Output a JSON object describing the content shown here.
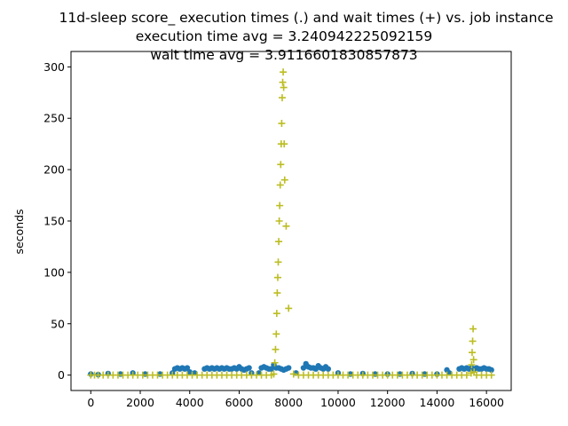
{
  "title": {
    "line1": "11d-sleep score_ execution times (.) and wait times (+) vs. job instance",
    "line2": "execution time avg = 3.240942225092159",
    "line3": "wait time avg = 3.9116601830857873"
  },
  "colors": {
    "execution": "#1f77b4",
    "wait": "#bcbd22",
    "axis": "#000000",
    "background": "#ffffff"
  },
  "chart_data": {
    "type": "scatter",
    "ylabel": "seconds",
    "xlabel": "",
    "xlim": [
      -800,
      17000
    ],
    "ylim": [
      -15,
      315
    ],
    "xticks": [
      0,
      2000,
      4000,
      6000,
      8000,
      10000,
      12000,
      14000,
      16000
    ],
    "yticks": [
      0,
      50,
      100,
      150,
      200,
      250,
      300
    ],
    "grid": false,
    "series": [
      {
        "marker": "dot",
        "color": "#1f77b4",
        "x": [
          0,
          300,
          700,
          1200,
          1700,
          2200,
          2800,
          3300,
          3400,
          3500,
          3600,
          3700,
          3800,
          3900,
          4000,
          4200,
          4600,
          4700,
          4800,
          4900,
          5000,
          5100,
          5200,
          5300,
          5400,
          5500,
          5600,
          5700,
          5800,
          5900,
          6000,
          6100,
          6200,
          6300,
          6400,
          6500,
          6800,
          6900,
          7000,
          7100,
          7200,
          7300,
          7400,
          7500,
          7600,
          7700,
          7800,
          7900,
          8000,
          8300,
          8600,
          8700,
          8800,
          8900,
          9000,
          9100,
          9200,
          9300,
          9400,
          9500,
          9600,
          10000,
          10500,
          11000,
          11500,
          12000,
          12500,
          13000,
          13500,
          14000,
          14400,
          14500,
          14900,
          15000,
          15100,
          15200,
          15300,
          15400,
          15500,
          15600,
          15700,
          15800,
          15900,
          16000,
          16100,
          16200
        ],
        "y": [
          1,
          0.5,
          1.5,
          1,
          2,
          1,
          1,
          2,
          6,
          7,
          6,
          7,
          6,
          7,
          3,
          2,
          6,
          7,
          6,
          7,
          6,
          7,
          6,
          7,
          6,
          7,
          6,
          6,
          7,
          6,
          8,
          6,
          5,
          6,
          7,
          2,
          2,
          7,
          8,
          7,
          6,
          6,
          10,
          7,
          7,
          6,
          5,
          6,
          7,
          2,
          7,
          11,
          8,
          7,
          7,
          6,
          9,
          7,
          6,
          8,
          6,
          2,
          1,
          1.5,
          1,
          1,
          1,
          1.5,
          1,
          1,
          5,
          2,
          6,
          7,
          6,
          7,
          6,
          7,
          6,
          7,
          6,
          6,
          7,
          6,
          6,
          5
        ]
      },
      {
        "marker": "plus",
        "color": "#bcbd22",
        "x": [
          0,
          150,
          300,
          500,
          700,
          900,
          1100,
          1300,
          1500,
          1700,
          1900,
          2100,
          2300,
          2500,
          2700,
          2900,
          3100,
          3300,
          3500,
          3700,
          3900,
          4100,
          4300,
          4500,
          4700,
          4900,
          5100,
          5300,
          5500,
          5700,
          5900,
          6100,
          6300,
          6500,
          6700,
          6900,
          7100,
          7300,
          7400,
          7440,
          7470,
          7500,
          7520,
          7540,
          7560,
          7580,
          7600,
          7620,
          7640,
          7660,
          7680,
          7700,
          7720,
          7740,
          7760,
          7780,
          7800,
          7820,
          7840,
          7900,
          8000,
          8200,
          8400,
          8600,
          8800,
          9000,
          9200,
          9400,
          9600,
          9800,
          10000,
          10200,
          10400,
          10600,
          10800,
          11000,
          11200,
          11400,
          11600,
          11800,
          12000,
          12200,
          12400,
          12600,
          12800,
          13000,
          13200,
          13400,
          13600,
          13800,
          14000,
          14200,
          14400,
          14600,
          14800,
          15000,
          15200,
          15380,
          15400,
          15420,
          15440,
          15460,
          15480,
          15500,
          15600,
          15800,
          16000,
          16200
        ],
        "y": [
          0,
          0,
          0,
          0,
          0,
          0,
          0,
          0,
          0,
          0,
          0,
          0,
          0,
          0,
          0,
          0,
          0,
          0,
          0,
          0,
          0,
          0,
          0,
          0,
          0,
          0,
          0,
          0,
          0,
          0,
          0,
          0,
          0,
          0,
          0,
          0,
          0,
          0,
          1,
          12,
          25,
          40,
          60,
          80,
          95,
          110,
          130,
          150,
          165,
          185,
          205,
          225,
          245,
          270,
          285,
          295,
          280,
          225,
          190,
          145,
          65,
          1,
          0,
          0,
          0,
          0,
          0,
          0,
          0,
          0,
          0,
          0,
          0,
          0,
          0,
          0,
          0,
          0,
          0,
          0,
          0,
          0,
          0,
          0,
          0,
          0,
          0,
          0,
          0,
          0,
          0,
          0,
          0,
          0,
          0,
          0,
          0,
          2,
          10,
          22,
          33,
          45,
          15,
          3,
          0,
          0,
          0,
          0
        ]
      }
    ]
  }
}
